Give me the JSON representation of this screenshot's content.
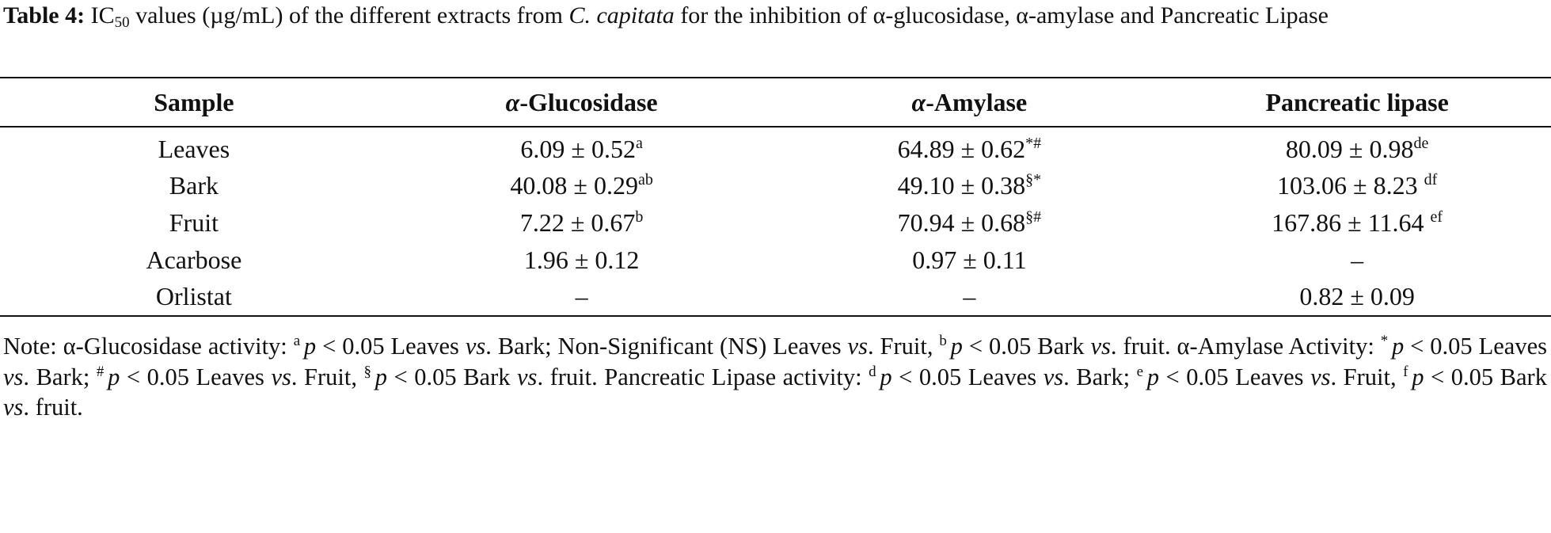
{
  "caption": {
    "label": "Table 4:",
    "pre": " IC",
    "sub": "50",
    "mid": " values (µg/mL) of the different extracts from ",
    "species": "C. capitata",
    "post": " for the inhibition of α-glucosidase, α-amylase and Pancreatic Lipase"
  },
  "table": {
    "headers": [
      "Sample",
      "α-Glucosidase",
      "α-Amylase",
      "Pancreatic lipase"
    ],
    "rows": [
      [
        "Leaves",
        {
          "value": "6.09 ± 0.52",
          "sup": "a"
        },
        {
          "value": "64.89 ± 0.62",
          "sup": "*#"
        },
        {
          "value": "80.09 ± 0.98",
          "sup": "de"
        }
      ],
      [
        "Bark",
        {
          "value": "40.08 ± 0.29",
          "sup": "ab"
        },
        {
          "value": "49.10 ± 0.38",
          "sup": "§*"
        },
        {
          "value": "103.06 ± 8.23 ",
          "sup": "df"
        }
      ],
      [
        "Fruit",
        {
          "value": "7.22 ± 0.67",
          "sup": "b"
        },
        {
          "value": "70.94 ± 0.68",
          "sup": "§#"
        },
        {
          "value": "167.86 ± 11.64 ",
          "sup": "ef"
        }
      ],
      [
        "Acarbose",
        "1.96 ± 0.12",
        "0.97 ± 0.11",
        "–"
      ],
      [
        "Orlistat",
        "–",
        "–",
        "0.82 ± 0.09"
      ]
    ]
  },
  "note": [
    {
      "text": "Note: α-Glucosidase activity: "
    },
    {
      "sup": "a"
    },
    {
      "em": "p"
    },
    {
      "text": " < 0.05 Leaves "
    },
    {
      "em": "vs"
    },
    {
      "text": ". Bark; Non-Significant (NS) Leaves "
    },
    {
      "em": "vs"
    },
    {
      "text": ". Fruit, "
    },
    {
      "sup": "b"
    },
    {
      "em": "p"
    },
    {
      "text": " < 0.05 Bark "
    },
    {
      "em": "vs"
    },
    {
      "text": ". fruit. α-Amylase Activity: "
    },
    {
      "sup": "*"
    },
    {
      "em": "p"
    },
    {
      "text": " < 0.05 Leaves "
    },
    {
      "em": "vs"
    },
    {
      "text": ". Bark; "
    },
    {
      "sup": "#"
    },
    {
      "em": "p"
    },
    {
      "text": " < 0.05 Leaves "
    },
    {
      "em": "vs"
    },
    {
      "text": ". Fruit, "
    },
    {
      "sup": "§"
    },
    {
      "em": "p"
    },
    {
      "text": " < 0.05 Bark "
    },
    {
      "em": "vs"
    },
    {
      "text": ". fruit. Pancreatic Lipase activity: "
    },
    {
      "sup": "d"
    },
    {
      "em": "p"
    },
    {
      "text": " < 0.05 Leaves "
    },
    {
      "em": "vs"
    },
    {
      "text": ". Bark; "
    },
    {
      "sup": "e"
    },
    {
      "em": "p"
    },
    {
      "text": " < 0.05 Leaves "
    },
    {
      "em": "vs"
    },
    {
      "text": ". Fruit, "
    },
    {
      "sup": "f"
    },
    {
      "em": "p"
    },
    {
      "text": " < 0.05 Bark "
    },
    {
      "em": "vs"
    },
    {
      "text": ". fruit."
    }
  ]
}
